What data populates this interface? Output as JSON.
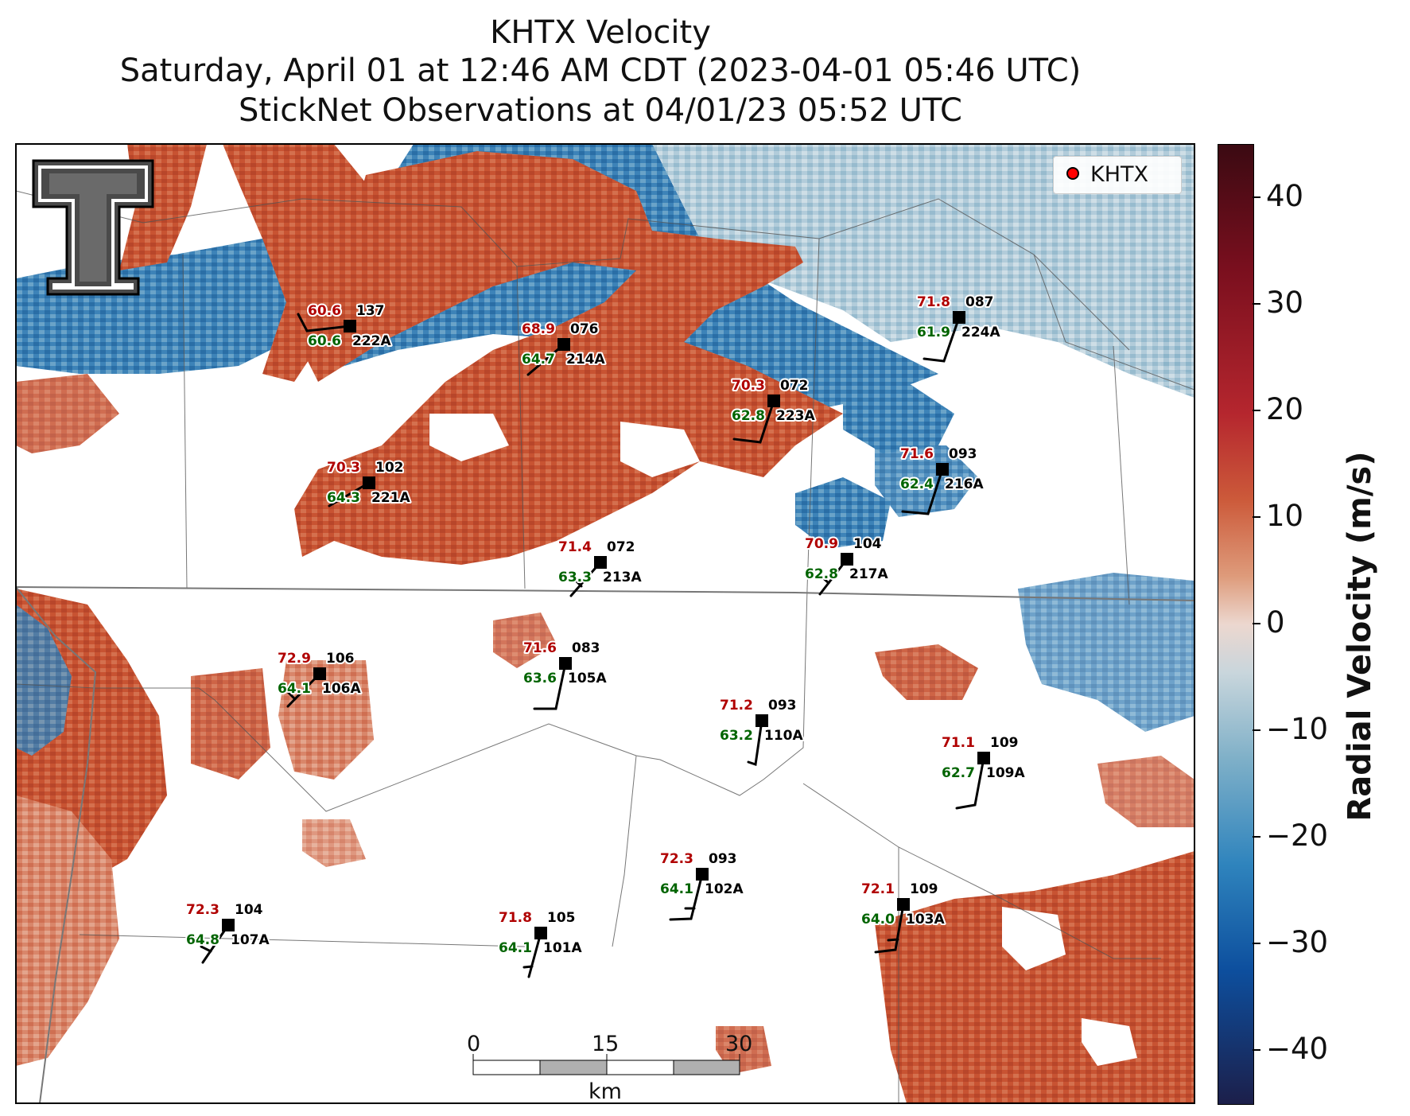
{
  "title": {
    "line1": "KHTX Velocity",
    "line2": "Saturday, April 01 at 12:46 AM CDT (2023-04-01 05:46 UTC)",
    "line3": "StickNet Observations at 04/01/23 05:52 UTC"
  },
  "legend": {
    "label": "KHTX",
    "marker_color": "#ff0000"
  },
  "colorbar": {
    "label": "Radial Velocity (m/s)",
    "range": [
      -45,
      45
    ],
    "ticks": [
      "40",
      "30",
      "20",
      "10",
      "0",
      "−10",
      "−20",
      "−30",
      "−40"
    ]
  },
  "scale_bar": {
    "ticks": [
      "0",
      "15",
      "30"
    ],
    "unit": "km"
  },
  "colors": {
    "temperature": "#b00000",
    "dewpoint": "#006400",
    "station": "#000000"
  },
  "stations": [
    {
      "id": "222A",
      "temp": "60.6",
      "dew": "60.6",
      "dir": "137"
    },
    {
      "id": "214A",
      "temp": "68.9",
      "dew": "64.7",
      "dir": "076"
    },
    {
      "id": "223A",
      "temp": "70.3",
      "dew": "62.8",
      "dir": "072"
    },
    {
      "id": "224A",
      "temp": "71.8",
      "dew": "61.9",
      "dir": "087"
    },
    {
      "id": "221A",
      "temp": "70.3",
      "dew": "64.3",
      "dir": "102"
    },
    {
      "id": "216A",
      "temp": "71.6",
      "dew": "62.4",
      "dir": "093"
    },
    {
      "id": "213A",
      "temp": "71.4",
      "dew": "63.3",
      "dir": "072"
    },
    {
      "id": "217A",
      "temp": "70.9",
      "dew": "62.8",
      "dir": "104"
    },
    {
      "id": "106A",
      "temp": "72.9",
      "dew": "64.1",
      "dir": "106"
    },
    {
      "id": "105A",
      "temp": "71.6",
      "dew": "63.6",
      "dir": "083"
    },
    {
      "id": "110A",
      "temp": "71.2",
      "dew": "63.2",
      "dir": "093"
    },
    {
      "id": "109A",
      "temp": "71.1",
      "dew": "62.7",
      "dir": "109"
    },
    {
      "id": "102A",
      "temp": "72.3",
      "dew": "64.1",
      "dir": "093"
    },
    {
      "id": "103A",
      "temp": "72.1",
      "dew": "64.0",
      "dir": "109"
    },
    {
      "id": "107A",
      "temp": "72.3",
      "dew": "64.8",
      "dir": "104"
    },
    {
      "id": "101A",
      "temp": "71.8",
      "dew": "64.1",
      "dir": "105"
    }
  ]
}
